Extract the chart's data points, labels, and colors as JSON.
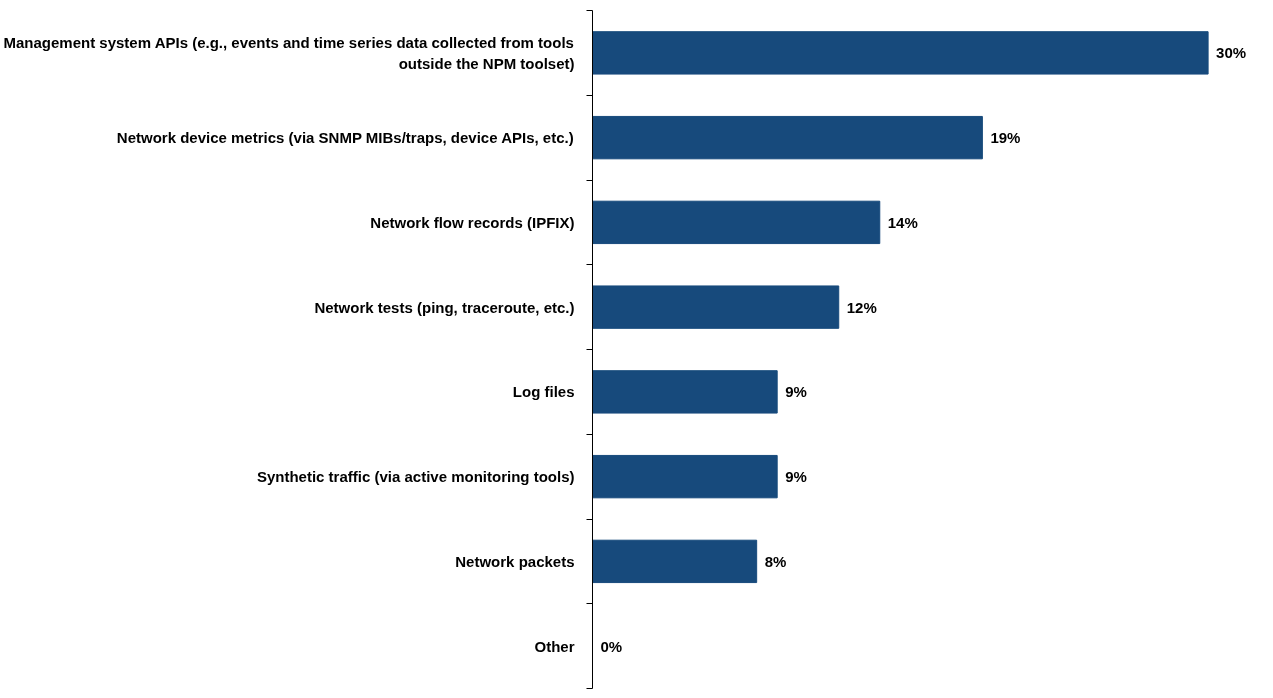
{
  "chart_data": {
    "type": "bar",
    "orientation": "horizontal",
    "categories": [
      "Management system APIs (e.g., events and time series data collected from tools outside the NPM toolset)",
      "Network device metrics (via SNMP MIBs/traps, device APIs, etc.)",
      "Network flow records (IPFIX)",
      "Network tests (ping, traceroute, etc.)",
      "Log files",
      "Synthetic traffic (via active monitoring tools)",
      "Network packets",
      "Other"
    ],
    "values": [
      30,
      19,
      14,
      12,
      9,
      9,
      8,
      0
    ],
    "value_labels": [
      "30%",
      "19%",
      "14%",
      "12%",
      "9%",
      "9%",
      "8%",
      "0%"
    ],
    "color": "#174a7c"
  }
}
